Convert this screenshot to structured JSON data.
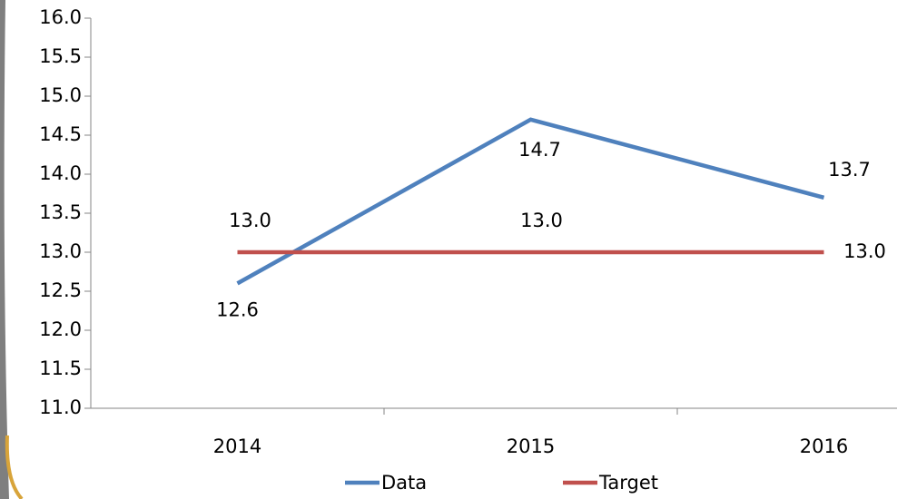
{
  "chart_data": {
    "type": "line",
    "categories": [
      "2014",
      "2015",
      "2016"
    ],
    "series": [
      {
        "name": "Data",
        "color": "#4f81bd",
        "values": [
          12.6,
          14.7,
          13.7
        ],
        "value_labels": [
          "12.6",
          "14.7",
          "13.7"
        ]
      },
      {
        "name": "Target",
        "color": "#c0504d",
        "values": [
          13.0,
          13.0,
          13.0
        ],
        "value_labels": [
          "13.0",
          "13.0",
          "13.0"
        ]
      }
    ],
    "ylim": [
      11,
      16
    ],
    "yticks": [
      {
        "value": 11,
        "label": "11.0"
      },
      {
        "value": 11.5,
        "label": "11.5"
      },
      {
        "value": 12,
        "label": "12.0"
      },
      {
        "value": 12.5,
        "label": "12.5"
      },
      {
        "value": 13,
        "label": "13.0"
      },
      {
        "value": 13.5,
        "label": "13.5"
      },
      {
        "value": 14,
        "label": "14.0"
      },
      {
        "value": 14.5,
        "label": "14.5"
      },
      {
        "value": 15,
        "label": "15.0"
      },
      {
        "value": 15.5,
        "label": "15.5"
      },
      {
        "value": 16,
        "label": "16.0"
      }
    ],
    "legend": "bottom"
  }
}
